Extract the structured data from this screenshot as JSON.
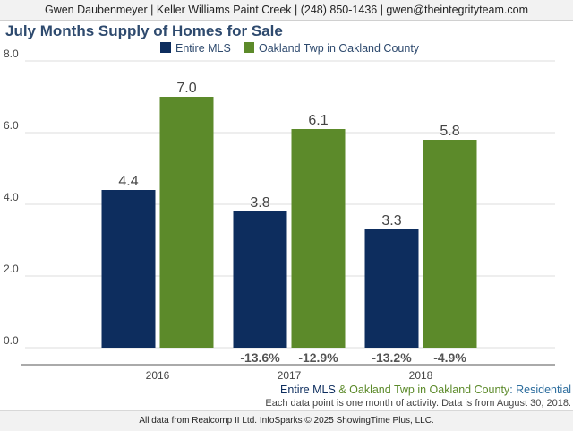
{
  "header": {
    "agent_line": "Gwen Daubenmeyer | Keller Williams Paint Creek | (248) 850-1436 | gwen@theintegrityteam.com"
  },
  "colors": {
    "series1": "#0d2d5e",
    "series2": "#5c8a2a",
    "title": "#2e4a6e",
    "pct_labels": "#555555"
  },
  "legend": {
    "item1": "Entire MLS",
    "item2": "Oakland Twp in Oakland County"
  },
  "footer": {
    "series1_name": "Entire MLS",
    "ampersand": " & ",
    "series2_name": "Oakland Twp in Oakland County",
    "colon": ":",
    "category": " Residential",
    "note": "Each data point is one month of activity. Data is from August 30, 2018.",
    "source": "All data from Realcomp II Ltd. InfoSparks © 2025 ShowingTime Plus, LLC."
  },
  "chart_data": {
    "type": "bar",
    "title": "July Months Supply of Homes for Sale",
    "categories": [
      "2016",
      "2017",
      "2018"
    ],
    "ylim": [
      0,
      8
    ],
    "yticks": [
      "0.0",
      "2.0",
      "4.0",
      "6.0",
      "8.0"
    ],
    "grid": true,
    "legend_position": "top",
    "series": [
      {
        "name": "Entire MLS",
        "values": [
          4.4,
          3.8,
          3.3
        ],
        "labels": [
          "4.4",
          "3.8",
          "3.3"
        ],
        "pct_change": [
          "",
          "-13.6%",
          "-13.2%"
        ]
      },
      {
        "name": "Oakland Twp in Oakland County",
        "values": [
          7.0,
          6.1,
          5.8
        ],
        "labels": [
          "7.0",
          "6.1",
          "5.8"
        ],
        "pct_change": [
          "",
          "-12.9%",
          "-4.9%"
        ]
      }
    ]
  }
}
